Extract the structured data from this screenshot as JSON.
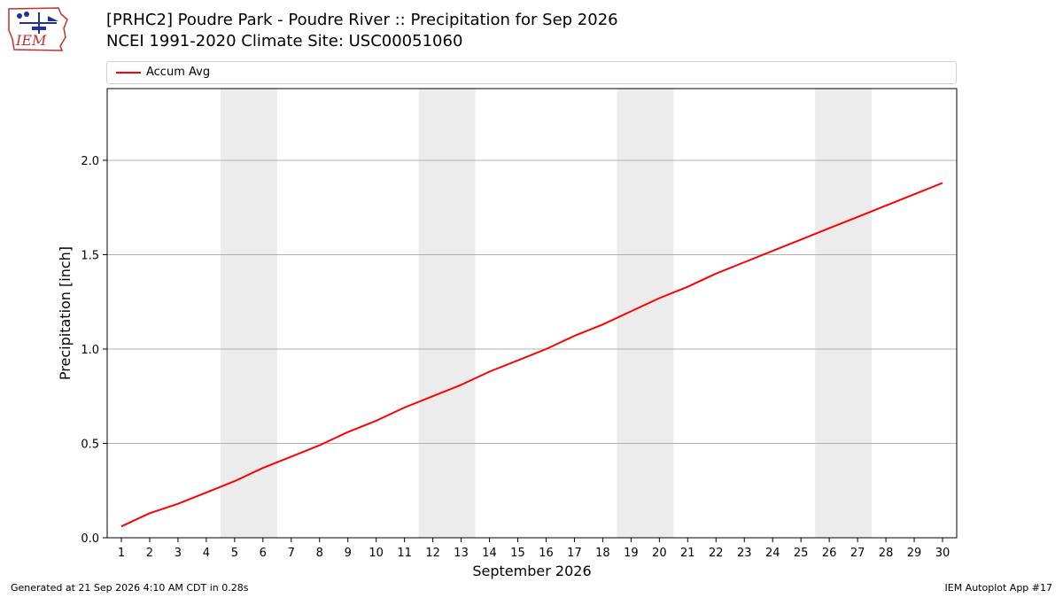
{
  "header": {
    "title_line1": "[PRHC2] Poudre Park - Poudre River :: Precipitation for Sep 2026",
    "title_line2": "NCEI 1991-2020 Climate Site: USC00051060",
    "logo_text": "IEM"
  },
  "footer": {
    "left": "Generated at 21 Sep 2026 4:10 AM CDT in 0.28s",
    "right": "IEM Autoplot App #17"
  },
  "colors": {
    "series": "#ff0000",
    "weekend_band": "#ececec",
    "grid": "#b0b0b0"
  },
  "chart_data": {
    "type": "line",
    "xlabel": "September 2026",
    "ylabel": "Precipitation [inch]",
    "xlim": [
      0.5,
      30.5
    ],
    "ylim": [
      0,
      2.38
    ],
    "yticks": [
      0.0,
      0.5,
      1.0,
      1.5,
      2.0
    ],
    "ytick_labels": [
      "0.0",
      "0.5",
      "1.0",
      "1.5",
      "2.0"
    ],
    "xticks": [
      1,
      2,
      3,
      4,
      5,
      6,
      7,
      8,
      9,
      10,
      11,
      12,
      13,
      14,
      15,
      16,
      17,
      18,
      19,
      20,
      21,
      22,
      23,
      24,
      25,
      26,
      27,
      28,
      29,
      30
    ],
    "grid": "horizontal",
    "legend_position": "top",
    "weekend_bands": [
      [
        4.5,
        6.5
      ],
      [
        11.5,
        13.5
      ],
      [
        18.5,
        20.5
      ],
      [
        25.5,
        27.5
      ]
    ],
    "series": [
      {
        "name": "Accum Avg",
        "color": "#ff0000",
        "x": [
          1,
          2,
          3,
          4,
          5,
          6,
          7,
          8,
          9,
          10,
          11,
          12,
          13,
          14,
          15,
          16,
          17,
          18,
          19,
          20,
          21,
          22,
          23,
          24,
          25,
          26,
          27,
          28,
          29,
          30
        ],
        "values": [
          0.06,
          0.13,
          0.18,
          0.24,
          0.3,
          0.37,
          0.43,
          0.49,
          0.56,
          0.62,
          0.69,
          0.75,
          0.81,
          0.88,
          0.94,
          1.0,
          1.07,
          1.13,
          1.2,
          1.27,
          1.33,
          1.4,
          1.46,
          1.52,
          1.58,
          1.64,
          1.7,
          1.76,
          1.82,
          1.88
        ]
      }
    ]
  }
}
